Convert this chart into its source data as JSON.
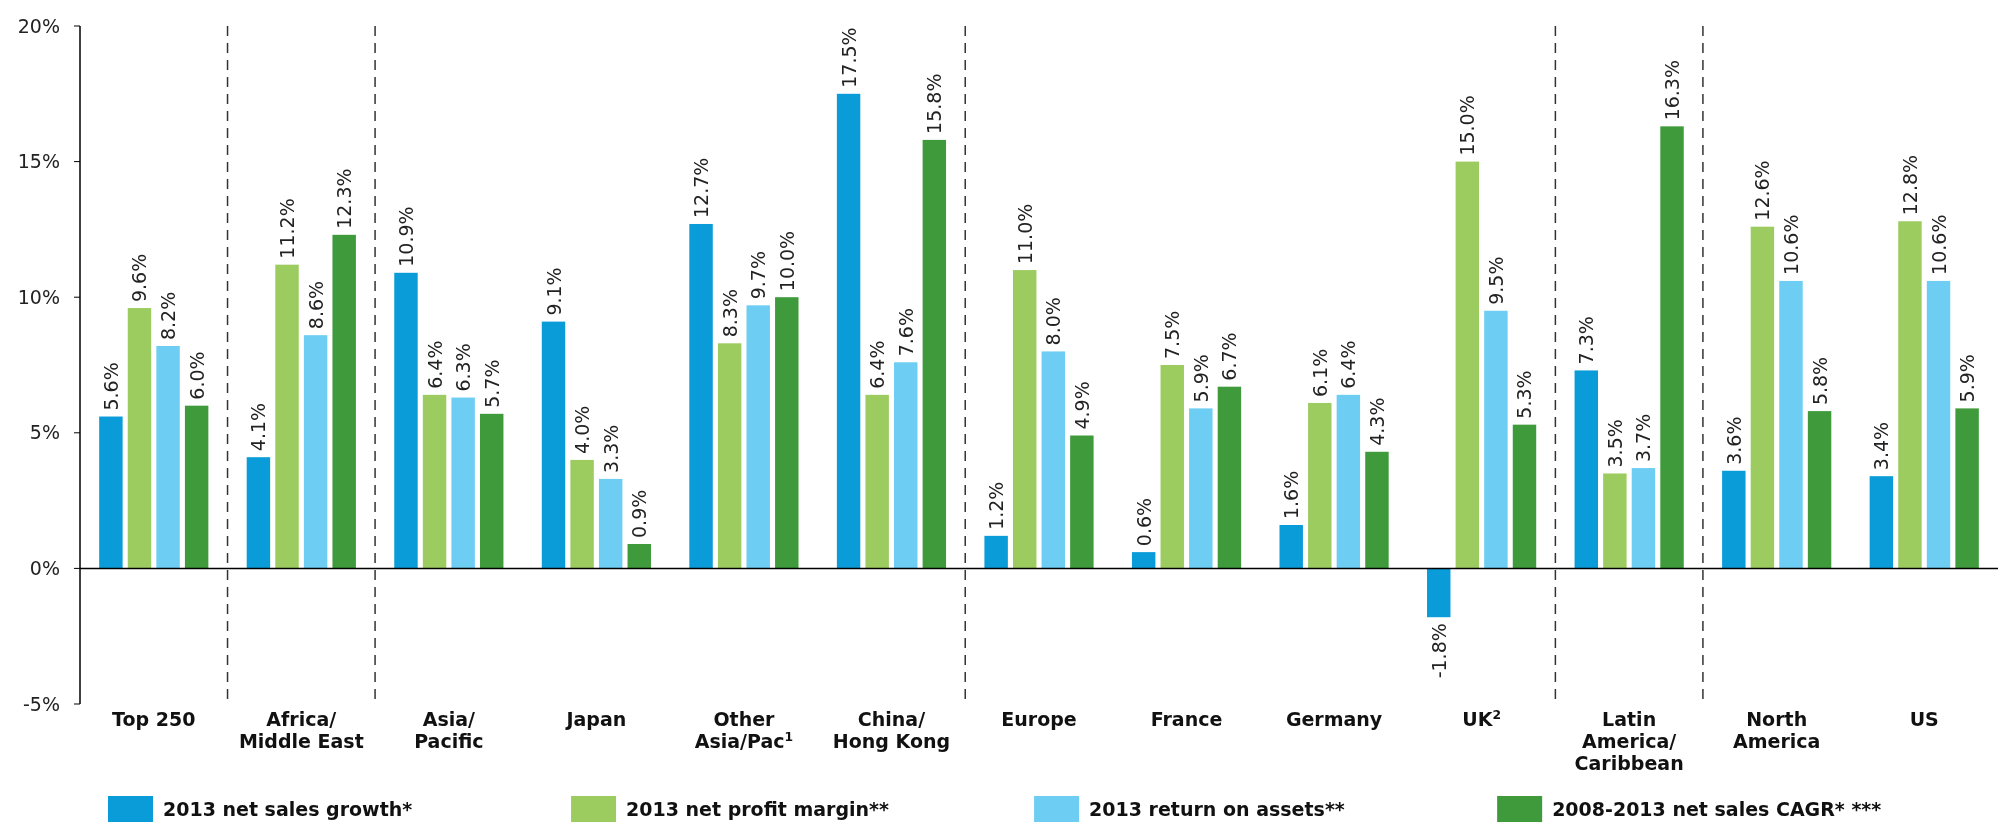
{
  "chart_data": {
    "type": "bar",
    "categories": [
      "Top 250",
      "Africa/\nMiddle East",
      "Asia/\nPacific",
      "Japan",
      "Other\nAsia/Pac$^{1}$",
      "China/\nHong Kong",
      "Europe",
      "France",
      "Germany",
      "UK$^{2}$",
      "Latin\nAmerica/\nCaribbean",
      "North\nAmerica",
      "US"
    ],
    "series": [
      {
        "name": "2013 net sales growth*",
        "color": "#0a9bd9",
        "values": [
          5.6,
          4.1,
          10.9,
          9.1,
          12.7,
          17.5,
          1.2,
          0.6,
          1.6,
          -1.8,
          7.3,
          3.6,
          3.4
        ],
        "value_labels": [
          "5.6%",
          "4.1%",
          "10.9%",
          "9.1%",
          "12.7%",
          "17.5%",
          "1.2%",
          "0.6%",
          "1.6%",
          "-1.8%",
          "7.3%",
          "3.6%",
          "3.4%"
        ]
      },
      {
        "name": "2013 net profit margin**",
        "color": "#9ccc60",
        "values": [
          9.6,
          11.2,
          6.4,
          4.0,
          8.3,
          6.4,
          11.0,
          7.5,
          6.1,
          15.0,
          3.5,
          12.6,
          12.8
        ],
        "value_labels": [
          "9.6%",
          "11.2%",
          "6.4%",
          "4.0%",
          "8.3%",
          "6.4%",
          "11.0%",
          "7.5%",
          "6.1%",
          "15.0%",
          "3.5%",
          "12.6%",
          "12.8%"
        ]
      },
      {
        "name": "2013 return on assets**",
        "color": "#6dcdf2",
        "values": [
          8.2,
          8.6,
          6.3,
          3.3,
          9.7,
          7.6,
          8.0,
          5.9,
          6.4,
          9.5,
          3.7,
          10.6,
          10.6
        ],
        "value_labels": [
          "8.2%",
          "8.6%",
          "6.3%",
          "3.3%",
          "9.7%",
          "7.6%",
          "8.0%",
          "5.9%",
          "6.4%",
          "9.5%",
          "3.7%",
          "10.6%",
          "10.6%"
        ]
      },
      {
        "name": "2008-2013 net sales CAGR* ***",
        "color": "#3e9a3a",
        "values": [
          6.0,
          12.3,
          5.7,
          0.9,
          10.0,
          15.8,
          4.9,
          6.7,
          4.3,
          5.3,
          16.3,
          5.8,
          5.9
        ],
        "value_labels": [
          "6.0%",
          "12.3%",
          "5.7%",
          "0.9%",
          "10.0%",
          "15.8%",
          "4.9%",
          "6.7%",
          "4.3%",
          "5.3%",
          "16.3%",
          "5.8%",
          "5.9%"
        ]
      }
    ],
    "ylim": [
      -5,
      20
    ],
    "yticks": [
      {
        "value": -5,
        "label": "-5%"
      },
      {
        "value": 0,
        "label": "0%"
      },
      {
        "value": 5,
        "label": "5%"
      },
      {
        "value": 10,
        "label": "10%"
      },
      {
        "value": 15,
        "label": "15%"
      },
      {
        "value": 20,
        "label": "20%"
      }
    ],
    "grid": false,
    "legend": "bottom"
  }
}
